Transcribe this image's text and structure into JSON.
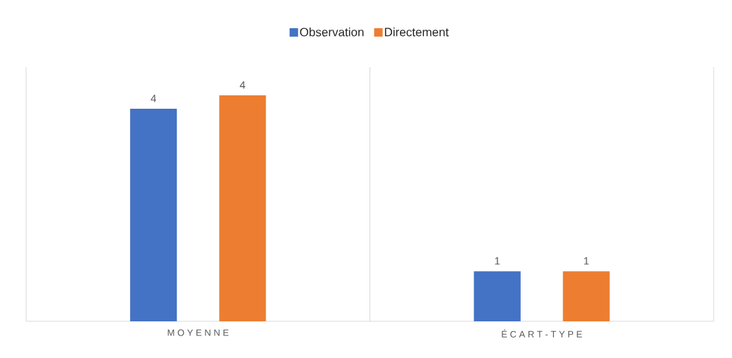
{
  "chart_data": {
    "type": "bar",
    "categories": [
      "M O Y E N N E",
      "É C A R T - T Y P E"
    ],
    "legend": "top",
    "grid": "x",
    "series": [
      {
        "name": "Observation",
        "color": "#4472c4",
        "values": [
          3.95,
          0.93
        ],
        "value_labels": [
          "4",
          "1"
        ]
      },
      {
        "name": "Directement",
        "color": "#ed7d31",
        "values": [
          4.2,
          0.93
        ],
        "value_labels": [
          "4",
          "1"
        ]
      }
    ]
  }
}
